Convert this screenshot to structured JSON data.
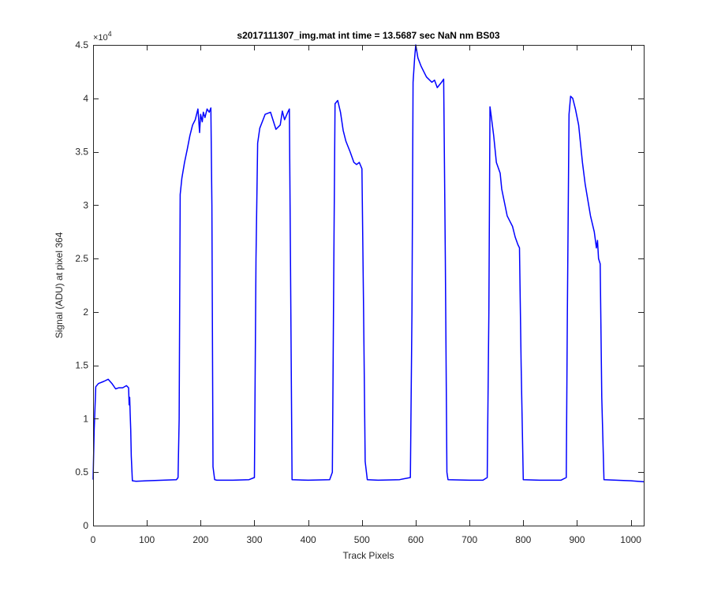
{
  "chart_data": {
    "type": "line",
    "title": "s2017111307_img.mat int time = 13.5687 sec  NaN nm BS03",
    "xlabel": "Track Pixels",
    "ylabel": "Signal (ADU) at pixel 364",
    "xlim": [
      0,
      1024
    ],
    "ylim": [
      0,
      45000
    ],
    "xticks": [
      0,
      100,
      200,
      300,
      400,
      500,
      600,
      700,
      800,
      900,
      1000
    ],
    "xtick_labels": [
      "0",
      "100",
      "200",
      "300",
      "400",
      "500",
      "600",
      "700",
      "800",
      "900",
      "1000"
    ],
    "yticks": [
      0,
      5000,
      10000,
      15000,
      20000,
      25000,
      30000,
      35000,
      40000,
      45000
    ],
    "ytick_labels": [
      "0",
      "0.5",
      "1",
      "1.5",
      "2",
      "2.5",
      "3",
      "3.5",
      "4",
      "4.5"
    ],
    "y_exponent_label": "×10",
    "y_exponent_power": "4",
    "grid": false,
    "series": [
      {
        "color": "#0000ff",
        "x": [
          0,
          2,
          5,
          10,
          20,
          28,
          35,
          42,
          48,
          55,
          62,
          66,
          67,
          68,
          69,
          70,
          71,
          73,
          80,
          100,
          130,
          155,
          158,
          160,
          162,
          165,
          170,
          175,
          180,
          185,
          190,
          195,
          198,
          200,
          203,
          205,
          208,
          212,
          216,
          219,
          221,
          223,
          226,
          230,
          260,
          290,
          300,
          303,
          306,
          310,
          320,
          330,
          340,
          348,
          352,
          356,
          362,
          365,
          367,
          370,
          400,
          440,
          445,
          448,
          450,
          455,
          460,
          465,
          470,
          478,
          485,
          490,
          495,
          500,
          503,
          506,
          510,
          530,
          570,
          590,
          593,
          595,
          598,
          600,
          604,
          610,
          615,
          620,
          630,
          635,
          640,
          648,
          652,
          655,
          658,
          660,
          700,
          725,
          733,
          736,
          738,
          740,
          745,
          750,
          757,
          760,
          770,
          775,
          780,
          785,
          790,
          793,
          796,
          800,
          830,
          870,
          880,
          882,
          885,
          888,
          892,
          897,
          903,
          910,
          915,
          920,
          925,
          932,
          936,
          938,
          940,
          943,
          946,
          950,
          1000,
          1024
        ],
        "y": [
          4300,
          9000,
          13000,
          13300,
          13500,
          13700,
          13300,
          12800,
          12900,
          12900,
          13100,
          12900,
          11300,
          12000,
          10500,
          9000,
          6500,
          4200,
          4150,
          4200,
          4250,
          4300,
          4500,
          10000,
          31000,
          32500,
          34000,
          35200,
          36500,
          37500,
          38000,
          39000,
          36800,
          38500,
          37800,
          38700,
          38200,
          39000,
          38700,
          39100,
          30000,
          5500,
          4300,
          4250,
          4250,
          4300,
          4500,
          25000,
          35800,
          37200,
          38500,
          38700,
          37100,
          37500,
          38800,
          38000,
          38700,
          39000,
          25000,
          4300,
          4250,
          4300,
          5000,
          27000,
          39500,
          39800,
          38700,
          37000,
          36000,
          35000,
          34000,
          33800,
          34000,
          33400,
          20000,
          6000,
          4300,
          4250,
          4300,
          4500,
          20000,
          41500,
          43800,
          45000,
          43800,
          43000,
          42500,
          42000,
          41500,
          41700,
          41000,
          41500,
          41800,
          25000,
          5000,
          4300,
          4250,
          4250,
          4500,
          20000,
          39200,
          38500,
          36500,
          34000,
          33000,
          31500,
          29000,
          28500,
          28000,
          27000,
          26300,
          26000,
          15000,
          4300,
          4250,
          4250,
          4500,
          20000,
          38500,
          40200,
          40000,
          39000,
          37500,
          34000,
          32000,
          30500,
          29000,
          27500,
          26000,
          26700,
          25000,
          24500,
          12000,
          4300,
          4200,
          4100
        ]
      }
    ]
  }
}
